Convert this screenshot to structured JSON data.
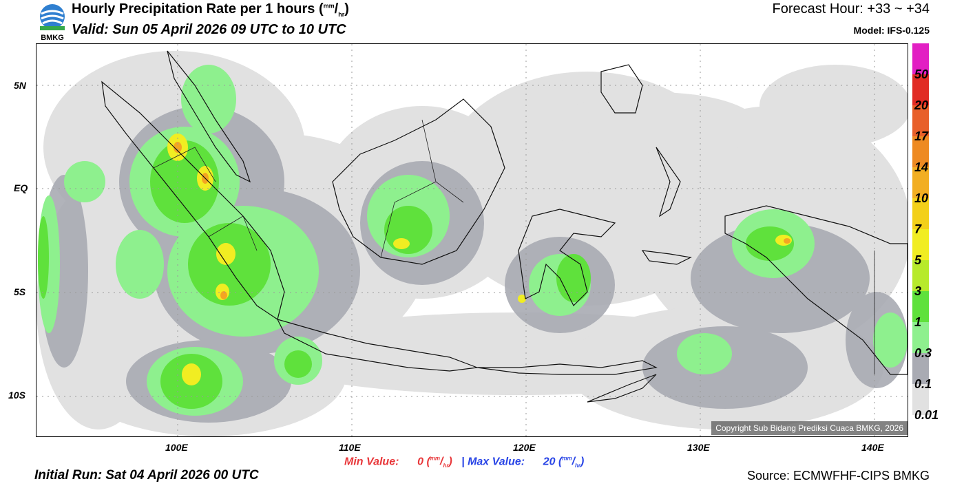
{
  "header": {
    "title": "Hourly Precipitation Rate per 1 hours",
    "title_unit_num": "mm",
    "title_unit_den": "hr",
    "valid": "Valid: Sun 05 April 2026 09 UTC to 10 UTC",
    "forecast_hour": "Forecast Hour: +33 ~ +34",
    "model": "Model: IFS-0.125",
    "logo_text": "BMKG"
  },
  "map": {
    "lat_labels": [
      "5N",
      "EQ",
      "5S",
      "10S"
    ],
    "lon_labels": [
      "100E",
      "110E",
      "120E",
      "130E",
      "140E"
    ],
    "copyright": "Copyright Sub Bidang Prediksi Cuaca BMKG, 2026"
  },
  "legend": {
    "labels": [
      "50",
      "20",
      "17",
      "14",
      "10",
      "7",
      "5",
      "3",
      "1",
      "0.3",
      "0.1",
      "0.01"
    ],
    "colors": [
      "#e21fc3",
      "#e12c24",
      "#e8602a",
      "#ee8a22",
      "#f2ae22",
      "#f3d019",
      "#f1ed22",
      "#b7ea2b",
      "#5fe13c",
      "#8ef08e",
      "#a9abb3",
      "#e1e1e1"
    ]
  },
  "footer": {
    "min_label": "Min Value:",
    "min_value": "0",
    "unit_num": "mm",
    "unit_den": "hr",
    "separator": "|",
    "max_label": "Max Value:",
    "max_value": "20",
    "initial_run": "Initial Run: Sat 04 April 2026 00 UTC",
    "source": "Source: ECMWFHF-CIPS BMKG"
  },
  "colors": {
    "min_color": "#e8373a",
    "max_color": "#2945e6",
    "coast": "#111111",
    "grid": "#9a9a9a"
  }
}
